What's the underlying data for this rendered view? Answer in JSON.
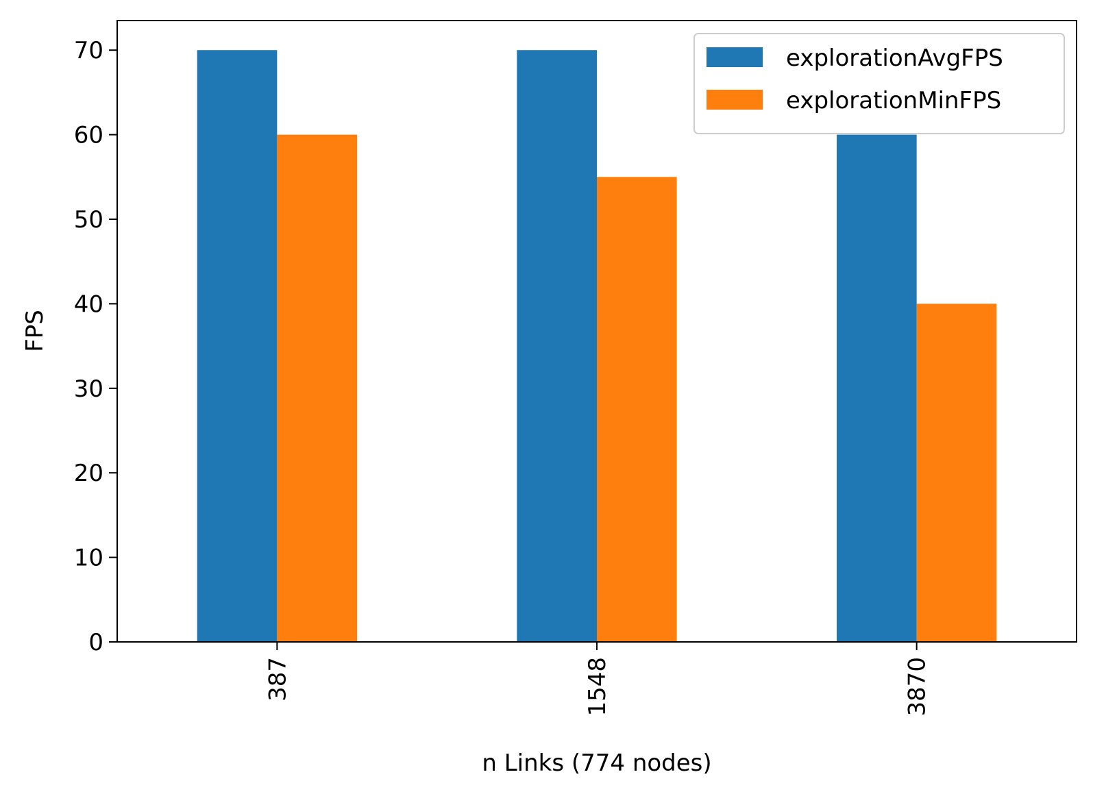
{
  "chart_data": {
    "type": "bar",
    "title": "",
    "xlabel": "n Links (774 nodes)",
    "ylabel": "FPS",
    "categories": [
      "387",
      "1548",
      "3870"
    ],
    "series": [
      {
        "name": "explorationAvgFPS",
        "color": "#1f77b4",
        "values": [
          70,
          70,
          60
        ]
      },
      {
        "name": "explorationMinFPS",
        "color": "#ff7f0e",
        "values": [
          60,
          55,
          40
        ]
      }
    ],
    "ylim": [
      0,
      73.5
    ],
    "yticks": [
      0,
      10,
      20,
      30,
      40,
      50,
      60,
      70
    ],
    "grid": false,
    "legend_position": "top-right",
    "xtick_rotation": "vertical"
  }
}
